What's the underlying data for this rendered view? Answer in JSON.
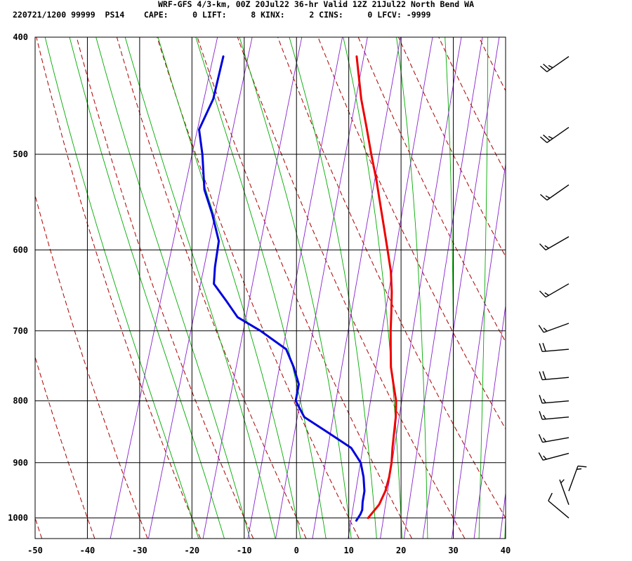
{
  "header": {
    "title": "WRF-GFS 4/3-km, 00Z 20Jul22 36-hr Valid 12Z 21Jul22 North Bend WA",
    "station_line": "220721/1200 99999  PS14    CAPE:     0 LIFT:     8 KINX:     2 CINS:     0 LFCV: -9999"
  },
  "chart_data": {
    "type": "line",
    "subtype": "skew-T log-p sounding",
    "x_axis": {
      "label": "",
      "ticks": [
        "-50",
        "-40",
        "-30",
        "-20",
        "-10",
        "0",
        "10",
        "20",
        "30",
        "40"
      ],
      "range": [
        -50,
        40
      ]
    },
    "y_axis": {
      "label": "",
      "scale": "log",
      "ticks": [
        "400",
        "500",
        "600",
        "700",
        "800",
        "900",
        "1000"
      ],
      "range": [
        400,
        1040
      ]
    },
    "grid": true,
    "series": [
      {
        "color": "#ee0000",
        "points": [
          [
            1000,
            13.7
          ],
          [
            975,
            15.0
          ],
          [
            950,
            15.4
          ],
          [
            925,
            15.3
          ],
          [
            900,
            14.9
          ],
          [
            875,
            14.2
          ],
          [
            850,
            13.6
          ],
          [
            825,
            13.0
          ],
          [
            800,
            12.1
          ],
          [
            775,
            10.6
          ],
          [
            750,
            9.1
          ],
          [
            725,
            8.0
          ],
          [
            700,
            6.9
          ],
          [
            675,
            5.9
          ],
          [
            650,
            4.8
          ],
          [
            625,
            3.4
          ],
          [
            600,
            1.5
          ],
          [
            575,
            -0.5
          ],
          [
            550,
            -2.6
          ],
          [
            525,
            -4.8
          ],
          [
            500,
            -7.3
          ],
          [
            475,
            -9.8
          ],
          [
            450,
            -12.5
          ],
          [
            415,
            -15.9
          ]
        ]
      },
      {
        "color": "#0000dd",
        "points": [
          [
            1005,
            11.6
          ],
          [
            993,
            12.0
          ],
          [
            985,
            12.1
          ],
          [
            970,
            11.7
          ],
          [
            950,
            11.4
          ],
          [
            925,
            10.4
          ],
          [
            900,
            9.0
          ],
          [
            875,
            6.3
          ],
          [
            850,
            1.0
          ],
          [
            825,
            -4.5
          ],
          [
            800,
            -7.1
          ],
          [
            775,
            -7.5
          ],
          [
            750,
            -9.5
          ],
          [
            725,
            -12.0
          ],
          [
            700,
            -18.0
          ],
          [
            682,
            -23.2
          ],
          [
            660,
            -26.5
          ],
          [
            640,
            -29.7
          ],
          [
            620,
            -30.5
          ],
          [
            590,
            -31.3
          ],
          [
            560,
            -34.2
          ],
          [
            535,
            -37.1
          ],
          [
            500,
            -39.6
          ],
          [
            477,
            -41.7
          ],
          [
            450,
            -40.8
          ],
          [
            415,
            -41.4
          ]
        ]
      }
    ],
    "wind_barbs": [
      {
        "p": 415,
        "dir": 235,
        "kt": 25
      },
      {
        "p": 475,
        "dir": 235,
        "kt": 25
      },
      {
        "p": 530,
        "dir": 235,
        "kt": 15
      },
      {
        "p": 585,
        "dir": 240,
        "kt": 15
      },
      {
        "p": 640,
        "dir": 240,
        "kt": 15
      },
      {
        "p": 690,
        "dir": 250,
        "kt": 15
      },
      {
        "p": 725,
        "dir": 265,
        "kt": 20
      },
      {
        "p": 765,
        "dir": 265,
        "kt": 20
      },
      {
        "p": 800,
        "dir": 265,
        "kt": 15
      },
      {
        "p": 825,
        "dir": 265,
        "kt": 15
      },
      {
        "p": 858,
        "dir": 260,
        "kt": 15
      },
      {
        "p": 884,
        "dir": 255,
        "kt": 15
      },
      {
        "p": 950,
        "dir": 20,
        "kt": 15
      },
      {
        "p": 975,
        "dir": 340,
        "kt": 5
      },
      {
        "p": 1000,
        "dir": 310,
        "kt": 10
      }
    ],
    "colors": {
      "isotherm": "#000000",
      "dry_adiabat": "#aa0000",
      "moist_adiabat": "#00aa00",
      "mixing_ratio": "#8822cc"
    }
  }
}
